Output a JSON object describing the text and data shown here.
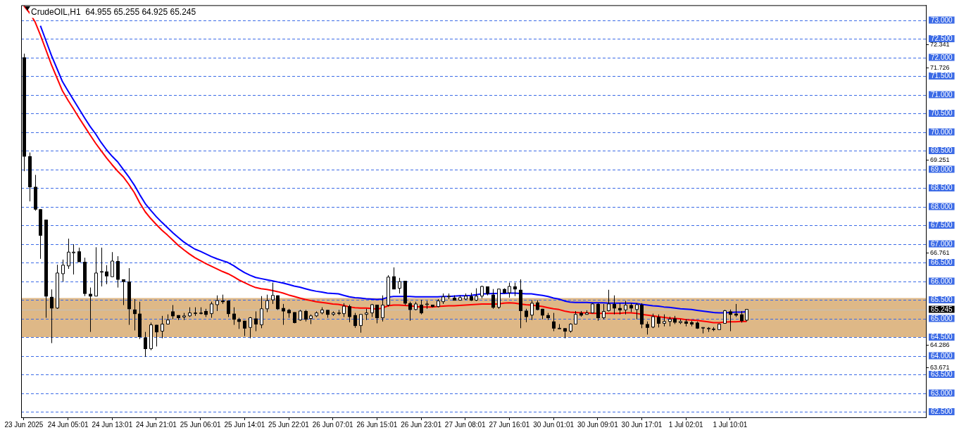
{
  "chart_data": {
    "type": "candlestick",
    "title": "CrudeOIL,H1  64.955 65.255 64.925 65.245",
    "categories": [
      "23 Jun 2025",
      null,
      null,
      null,
      null,
      null,
      null,
      null,
      "24 Jun 05:01",
      null,
      null,
      null,
      null,
      null,
      null,
      null,
      "24 Jun 13:01",
      null,
      null,
      null,
      null,
      null,
      null,
      null,
      "24 Jun 21:01",
      null,
      null,
      null,
      null,
      null,
      null,
      null,
      "25 Jun 06:01",
      null,
      null,
      null,
      null,
      null,
      null,
      null,
      "25 Jun 14:01",
      null,
      null,
      null,
      null,
      null,
      null,
      null,
      "25 Jun 22:01",
      null,
      null,
      null,
      null,
      null,
      null,
      null,
      "26 Jun 07:01",
      null,
      null,
      null,
      null,
      null,
      null,
      null,
      "26 Jun 15:01",
      null,
      null,
      null,
      null,
      null,
      null,
      null,
      "26 Jun 23:01",
      null,
      null,
      null,
      null,
      null,
      null,
      null,
      "27 Jun 08:01",
      null,
      null,
      null,
      null,
      null,
      null,
      null,
      "27 Jun 16:01",
      null,
      null,
      null,
      null,
      null,
      null,
      null,
      "30 Jun 01:01",
      null,
      null,
      null,
      null,
      null,
      null,
      null,
      "30 Jun 09:01",
      null,
      null,
      null,
      null,
      null,
      null,
      null,
      "30 Jun 17:01",
      null,
      null,
      null,
      null,
      null,
      null,
      null,
      "1 Jul 02:01",
      null,
      null,
      null,
      null,
      null,
      null,
      null,
      "1 Jul 10:01",
      null,
      null,
      null,
      null,
      null,
      null,
      null,
      null,
      null,
      null,
      null,
      null,
      null,
      null,
      null,
      null,
      null,
      null,
      null,
      null,
      null,
      null,
      null,
      null,
      null,
      null,
      null,
      null,
      null,
      null,
      null,
      null,
      null,
      null,
      null
    ],
    "ohlc": [
      [
        72.0,
        72.1,
        68.95,
        69.35
      ],
      [
        69.35,
        69.45,
        68.14,
        68.53
      ],
      [
        68.53,
        68.85,
        67.89,
        67.93
      ],
      [
        67.93,
        67.93,
        66.6,
        67.23
      ],
      [
        67.65,
        67.65,
        65.02,
        65.6
      ],
      [
        65.58,
        65.78,
        64.34,
        65.28
      ],
      [
        65.28,
        66.44,
        65.26,
        66.22
      ],
      [
        66.2,
        66.58,
        65.99,
        66.43
      ],
      [
        66.41,
        67.14,
        66.33,
        66.78
      ],
      [
        66.78,
        66.99,
        66.18,
        66.78
      ],
      [
        66.8,
        66.9,
        66.52,
        66.52
      ],
      [
        66.52,
        66.63,
        65.6,
        65.67
      ],
      [
        65.66,
        65.83,
        64.64,
        65.6
      ],
      [
        65.6,
        66.91,
        65.6,
        66.22
      ],
      [
        66.26,
        66.9,
        65.86,
        66.26
      ],
      [
        66.26,
        66.43,
        65.92,
        66.14
      ],
      [
        66.12,
        66.78,
        66.12,
        66.54
      ],
      [
        66.54,
        66.67,
        65.83,
        66.05
      ],
      [
        66.05,
        66.05,
        65.36,
        65.99
      ],
      [
        65.99,
        66.35,
        64.83,
        65.26
      ],
      [
        65.24,
        65.52,
        64.68,
        65.13
      ],
      [
        65.13,
        65.45,
        64.45,
        64.51
      ],
      [
        64.49,
        64.64,
        63.97,
        64.19
      ],
      [
        64.19,
        64.89,
        64.15,
        64.83
      ],
      [
        64.83,
        64.83,
        64.25,
        64.64
      ],
      [
        64.66,
        65.07,
        64.47,
        64.85
      ],
      [
        64.85,
        65.11,
        64.85,
        64.96
      ],
      [
        65.19,
        65.36,
        64.98,
        65.07
      ],
      [
        65.09,
        65.09,
        64.96,
        65.02
      ],
      [
        65.04,
        65.15,
        64.96,
        65.07
      ],
      [
        65.07,
        65.3,
        65.04,
        65.15
      ],
      [
        65.15,
        65.3,
        65.07,
        65.15
      ],
      [
        65.15,
        65.3,
        65.11,
        65.15
      ],
      [
        65.2,
        65.26,
        65.04,
        65.11
      ],
      [
        65.13,
        65.45,
        65.02,
        65.39
      ],
      [
        65.37,
        65.62,
        65.2,
        65.48
      ],
      [
        65.48,
        65.64,
        65.39,
        65.45
      ],
      [
        65.48,
        65.48,
        65.04,
        65.13
      ],
      [
        65.13,
        65.3,
        64.83,
        64.98
      ],
      [
        64.98,
        65.02,
        64.72,
        64.92
      ],
      [
        64.94,
        64.94,
        64.53,
        64.74
      ],
      [
        64.76,
        65.04,
        64.47,
        65.02
      ],
      [
        65.0,
        65.19,
        64.66,
        64.85
      ],
      [
        64.83,
        65.6,
        64.74,
        65.26
      ],
      [
        65.26,
        65.64,
        65.17,
        65.48
      ],
      [
        65.5,
        65.96,
        65.39,
        65.62
      ],
      [
        65.62,
        65.62,
        65.23,
        65.26
      ],
      [
        65.28,
        65.39,
        64.83,
        65.2
      ],
      [
        65.23,
        65.26,
        65.02,
        65.15
      ],
      [
        65.17,
        65.17,
        64.87,
        64.89
      ],
      [
        64.96,
        65.23,
        64.94,
        65.2
      ],
      [
        65.2,
        65.23,
        64.92,
        64.98
      ],
      [
        65.0,
        65.11,
        64.85,
        65.07
      ],
      [
        65.07,
        65.19,
        65.04,
        65.15
      ],
      [
        65.15,
        65.3,
        65.11,
        65.23
      ],
      [
        65.23,
        65.23,
        65.02,
        65.11
      ],
      [
        65.11,
        65.19,
        65.07,
        65.15
      ],
      [
        65.15,
        65.23,
        65.09,
        65.15
      ],
      [
        65.13,
        65.41,
        65.04,
        65.33
      ],
      [
        65.33,
        65.37,
        64.9,
        65.05
      ],
      [
        65.09,
        65.15,
        64.75,
        64.81
      ],
      [
        64.81,
        65.11,
        64.62,
        65.11
      ],
      [
        65.11,
        65.26,
        64.96,
        65.15
      ],
      [
        65.15,
        65.39,
        65.04,
        65.37
      ],
      [
        65.37,
        65.37,
        64.87,
        65.02
      ],
      [
        65.02,
        65.62,
        64.92,
        65.36
      ],
      [
        65.36,
        66.16,
        65.32,
        66.11
      ],
      [
        66.13,
        66.37,
        65.79,
        65.79
      ],
      [
        65.81,
        66.09,
        65.67,
        65.99
      ],
      [
        66.01,
        66.01,
        65.36,
        65.41
      ],
      [
        65.41,
        65.45,
        64.94,
        65.24
      ],
      [
        65.24,
        65.45,
        65.22,
        65.39
      ],
      [
        65.37,
        65.5,
        65.11,
        65.15
      ],
      [
        65.39,
        65.47,
        65.26,
        65.39
      ],
      [
        65.37,
        65.37,
        65.3,
        65.32
      ],
      [
        65.32,
        65.52,
        65.3,
        65.47
      ],
      [
        65.45,
        65.67,
        65.39,
        65.58
      ],
      [
        65.6,
        65.67,
        65.52,
        65.6
      ],
      [
        65.56,
        65.62,
        65.49,
        65.49
      ],
      [
        65.49,
        65.62,
        65.49,
        65.56
      ],
      [
        65.52,
        65.67,
        65.5,
        65.6
      ],
      [
        65.6,
        65.69,
        65.47,
        65.49
      ],
      [
        65.49,
        65.81,
        65.47,
        65.6
      ],
      [
        65.6,
        65.88,
        65.54,
        65.86
      ],
      [
        65.86,
        65.86,
        65.62,
        65.67
      ],
      [
        65.64,
        65.79,
        65.26,
        65.3
      ],
      [
        65.3,
        65.79,
        65.26,
        65.79
      ],
      [
        65.79,
        65.81,
        65.67,
        65.69
      ],
      [
        65.69,
        65.96,
        65.56,
        65.86
      ],
      [
        65.86,
        65.96,
        65.6,
        65.79
      ],
      [
        65.77,
        66.05,
        64.74,
        65.21
      ],
      [
        65.21,
        65.26,
        64.9,
        65.05
      ],
      [
        65.09,
        65.49,
        64.96,
        65.41
      ],
      [
        65.43,
        65.49,
        65.22,
        65.24
      ],
      [
        65.26,
        65.26,
        64.98,
        65.09
      ],
      [
        65.09,
        65.15,
        64.96,
        65.02
      ],
      [
        64.92,
        65.15,
        64.66,
        64.74
      ],
      [
        64.74,
        64.85,
        64.72,
        64.74
      ],
      [
        64.74,
        64.74,
        64.47,
        64.66
      ],
      [
        64.66,
        64.87,
        64.62,
        64.85
      ],
      [
        64.85,
        65.2,
        64.85,
        65.11
      ],
      [
        65.15,
        65.2,
        65.05,
        65.09
      ],
      [
        65.11,
        65.22,
        65.11,
        65.15
      ],
      [
        65.15,
        65.41,
        65.15,
        65.39
      ],
      [
        65.39,
        65.41,
        64.94,
        65.02
      ],
      [
        65.02,
        65.39,
        64.98,
        65.19
      ],
      [
        65.21,
        65.77,
        65.19,
        65.39
      ],
      [
        65.39,
        65.62,
        65.11,
        65.28
      ],
      [
        65.28,
        65.41,
        65.11,
        65.23
      ],
      [
        65.23,
        65.47,
        65.11,
        65.36
      ],
      [
        65.36,
        65.41,
        65.17,
        65.28
      ],
      [
        65.24,
        65.41,
        64.98,
        65.37
      ],
      [
        65.37,
        65.41,
        64.74,
        64.85
      ],
      [
        64.85,
        64.92,
        64.57,
        64.76
      ],
      [
        64.77,
        65.13,
        64.74,
        65.05
      ],
      [
        65.04,
        65.11,
        64.76,
        64.87
      ],
      [
        64.87,
        65.11,
        64.79,
        64.92
      ],
      [
        64.92,
        65.05,
        64.79,
        64.98
      ],
      [
        65.0,
        65.07,
        64.85,
        64.9
      ],
      [
        64.89,
        64.98,
        64.85,
        64.92
      ],
      [
        64.92,
        64.98,
        64.79,
        64.87
      ],
      [
        64.9,
        64.94,
        64.79,
        64.85
      ],
      [
        64.89,
        64.92,
        64.72,
        64.74
      ],
      [
        64.76,
        64.76,
        64.6,
        64.76
      ],
      [
        64.74,
        64.77,
        64.64,
        64.74
      ],
      [
        64.72,
        64.77,
        64.66,
        64.72
      ],
      [
        64.7,
        64.85,
        64.7,
        64.85
      ],
      [
        64.87,
        65.23,
        64.87,
        65.21
      ],
      [
        65.19,
        65.24,
        64.66,
        65.11
      ],
      [
        65.13,
        65.39,
        65.04,
        65.09
      ],
      [
        65.11,
        65.2,
        64.89,
        64.94
      ],
      [
        64.955,
        65.255,
        64.925,
        65.245
      ],
      null,
      null,
      null,
      null,
      null,
      null,
      null,
      null,
      null,
      null,
      null,
      null,
      null,
      null,
      null,
      null,
      null,
      null,
      null,
      null,
      null,
      null,
      null,
      null,
      null,
      null,
      null,
      null,
      null,
      null,
      null,
      null
    ],
    "series": [
      {
        "type": "line",
        "color": "#ff0000",
        "values": [
          73.38,
          73.2,
          72.96,
          72.6,
          72.2,
          71.8,
          71.45,
          71.1,
          70.85,
          70.62,
          70.38,
          70.15,
          69.92,
          69.7,
          69.5,
          69.3,
          69.12,
          68.95,
          68.8,
          68.6,
          68.38,
          68.1,
          67.86,
          67.68,
          67.52,
          67.37,
          67.24,
          67.1,
          66.96,
          66.84,
          66.73,
          66.63,
          66.55,
          66.47,
          66.4,
          66.33,
          66.26,
          66.2,
          66.12,
          66.03,
          65.96,
          65.89,
          65.83,
          65.8,
          65.78,
          65.75,
          65.72,
          65.68,
          65.63,
          65.59,
          65.55,
          65.51,
          65.48,
          65.45,
          65.43,
          65.41,
          65.39,
          65.38,
          65.35,
          65.31,
          65.29,
          65.28,
          65.28,
          65.27,
          65.25,
          65.28,
          65.34,
          65.36,
          65.36,
          65.35,
          65.34,
          65.32,
          65.31,
          65.31,
          65.31,
          65.32,
          65.33,
          65.34,
          65.34,
          65.35,
          65.36,
          65.37,
          65.38,
          65.39,
          65.39,
          65.39,
          65.39,
          65.41,
          65.42,
          65.41,
          65.39,
          65.37,
          65.36,
          65.34,
          65.32,
          65.29,
          65.26,
          65.24,
          65.2,
          65.17,
          65.16,
          65.15,
          65.15,
          65.14,
          65.14,
          65.14,
          65.14,
          65.14,
          65.14,
          65.15,
          65.15,
          65.14,
          65.11,
          65.09,
          65.07,
          65.05,
          65.03,
          65.01,
          65.0,
          64.99,
          64.97,
          64.96,
          64.95,
          64.93,
          64.91,
          64.89,
          64.89,
          64.9,
          64.91,
          64.91,
          64.92,
          64.92,
          null,
          null,
          null,
          null,
          null,
          null,
          null,
          null,
          null,
          null,
          null,
          null,
          null,
          null,
          null,
          null,
          null,
          null,
          null,
          null,
          null,
          null,
          null,
          null,
          null,
          null,
          null,
          null,
          null,
          null,
          null,
          null
        ]
      },
      {
        "type": "line",
        "color": "#0000ff",
        "values": [
          null,
          null,
          null,
          72.85,
          72.45,
          72.05,
          71.7,
          71.35,
          71.1,
          70.86,
          70.62,
          70.38,
          70.15,
          69.95,
          69.72,
          69.52,
          69.35,
          69.2,
          69.0,
          68.8,
          68.58,
          68.32,
          68.08,
          67.9,
          67.73,
          67.58,
          67.44,
          67.3,
          67.17,
          67.05,
          66.95,
          66.86,
          66.8,
          66.73,
          66.66,
          66.6,
          66.55,
          66.5,
          66.42,
          66.32,
          66.23,
          66.16,
          66.1,
          66.07,
          66.04,
          66.01,
          65.98,
          65.95,
          65.91,
          65.87,
          65.84,
          65.8,
          65.76,
          65.73,
          65.71,
          65.68,
          65.67,
          65.66,
          65.62,
          65.58,
          65.56,
          65.55,
          65.53,
          65.52,
          65.51,
          65.52,
          65.57,
          65.59,
          65.59,
          65.59,
          65.59,
          65.58,
          65.58,
          65.58,
          65.58,
          65.58,
          65.59,
          65.59,
          65.6,
          65.61,
          65.61,
          65.62,
          65.64,
          65.66,
          65.66,
          65.67,
          65.67,
          65.67,
          65.68,
          65.68,
          65.67,
          65.66,
          65.66,
          65.64,
          65.62,
          65.59,
          65.55,
          65.52,
          65.47,
          65.44,
          65.43,
          65.43,
          65.43,
          65.42,
          65.42,
          65.42,
          65.41,
          65.41,
          65.41,
          65.41,
          65.41,
          65.4,
          65.38,
          65.36,
          65.34,
          65.33,
          65.31,
          65.3,
          65.28,
          65.26,
          65.25,
          65.24,
          65.22,
          65.2,
          65.18,
          65.16,
          65.15,
          65.15,
          65.16,
          65.17,
          65.17,
          65.18,
          null,
          null,
          null,
          null,
          null,
          null,
          null,
          null,
          null,
          null,
          null,
          null,
          null,
          null,
          null,
          null,
          null,
          null,
          null,
          null,
          null,
          null,
          null,
          null,
          null,
          null,
          null,
          null,
          null,
          null,
          null,
          null
        ]
      }
    ],
    "ylim": [
      62.35,
      73.4
    ],
    "yticks": [
      72.341,
      71.726,
      69.251,
      66.761,
      64.286,
      63.671
    ],
    "bands": [
      {
        "axis": "y",
        "from": 64.5,
        "to": 65.55,
        "color": "#deb887"
      }
    ],
    "ref_lines": [
      {
        "axis": "y",
        "value": 73,
        "label": "73.000",
        "color": "#3c6be6",
        "line_style": "dashed"
      },
      {
        "axis": "y",
        "value": 72.5,
        "label": "72.500",
        "color": "#3c6be6",
        "line_style": "dashed"
      },
      {
        "axis": "y",
        "value": 72,
        "label": "72.000",
        "color": "#3c6be6",
        "line_style": "dashed"
      },
      {
        "axis": "y",
        "value": 71.5,
        "label": "71.500",
        "color": "#3c6be6",
        "line_style": "dashed"
      },
      {
        "axis": "y",
        "value": 71,
        "label": "71.000",
        "color": "#3c6be6",
        "line_style": "dashed"
      },
      {
        "axis": "y",
        "value": 70.5,
        "label": "70.500",
        "color": "#3c6be6",
        "line_style": "dashed"
      },
      {
        "axis": "y",
        "value": 70,
        "label": "70.000",
        "color": "#3c6be6",
        "line_style": "dashed"
      },
      {
        "axis": "y",
        "value": 69.5,
        "label": "69.500",
        "color": "#3c6be6",
        "line_style": "dashed"
      },
      {
        "axis": "y",
        "value": 69,
        "label": "69.000",
        "color": "#3c6be6",
        "line_style": "dashed"
      },
      {
        "axis": "y",
        "value": 68.5,
        "label": "68.500",
        "color": "#3c6be6",
        "line_style": "dashed"
      },
      {
        "axis": "y",
        "value": 68,
        "label": "68.000",
        "color": "#3c6be6",
        "line_style": "dashed"
      },
      {
        "axis": "y",
        "value": 67.5,
        "label": "67.500",
        "color": "#3c6be6",
        "line_style": "dashed"
      },
      {
        "axis": "y",
        "value": 67,
        "label": "67.000",
        "color": "#3c6be6",
        "line_style": "dashed"
      },
      {
        "axis": "y",
        "value": 66.5,
        "label": "66.500",
        "color": "#3c6be6",
        "line_style": "dashed"
      },
      {
        "axis": "y",
        "value": 66,
        "label": "66.000",
        "color": "#3c6be6",
        "line_style": "dashed"
      },
      {
        "axis": "y",
        "value": 65.5,
        "label": "65.500",
        "color": "#3c6be6",
        "line_style": "dashed"
      },
      {
        "axis": "y",
        "value": 65,
        "label": "65.000",
        "color": "#3c6be6",
        "line_style": "dashed"
      },
      {
        "axis": "y",
        "value": 64.5,
        "label": "64.500",
        "color": "#3c6be6",
        "line_style": "dashed"
      },
      {
        "axis": "y",
        "value": 64,
        "label": "64.000",
        "color": "#3c6be6",
        "line_style": "dashed"
      },
      {
        "axis": "y",
        "value": 63.5,
        "label": "63.500",
        "color": "#3c6be6",
        "line_style": "dashed"
      },
      {
        "axis": "y",
        "value": 63,
        "label": "63.000",
        "color": "#3c6be6",
        "line_style": "dashed"
      },
      {
        "axis": "y",
        "value": 62.5,
        "label": "62.500",
        "color": "#3c6be6",
        "line_style": "dashed"
      },
      {
        "axis": "y",
        "value": 65.245,
        "label": "65.245",
        "color": "#c0c0c0",
        "line_style": "solid"
      }
    ]
  }
}
